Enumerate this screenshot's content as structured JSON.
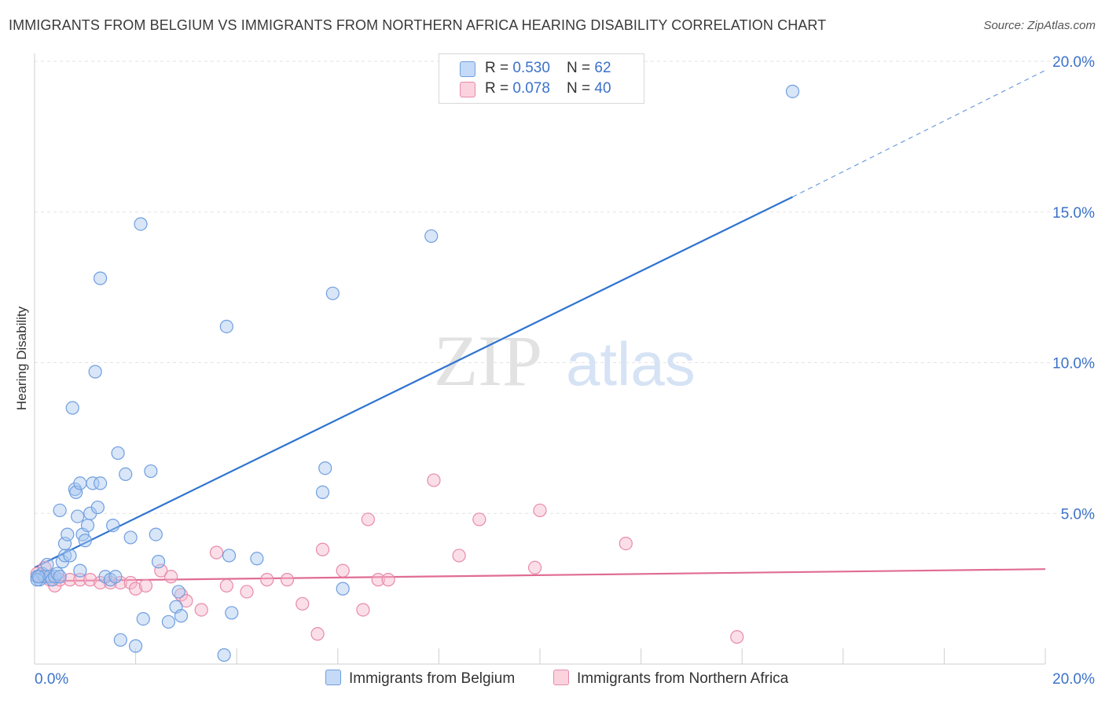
{
  "title": "IMMIGRANTS FROM BELGIUM VS IMMIGRANTS FROM NORTHERN AFRICA HEARING DISABILITY CORRELATION CHART",
  "source": "Source: ZipAtlas.com",
  "watermark": {
    "zip": "ZIP",
    "atlas": "atlas"
  },
  "legend": {
    "rows": [
      {
        "r_label": "R = ",
        "r_value": "0.530",
        "n_label": "N = ",
        "n_value": "62",
        "color": "#a9c8f0"
      },
      {
        "r_label": "R = ",
        "r_value": "0.078",
        "n_label": "N = ",
        "n_value": "40",
        "color": "#f7b9cc"
      }
    ]
  },
  "bottom_legend": [
    "Immigrants from Belgium",
    "Immigrants from Northern Africa"
  ],
  "chart_data": {
    "type": "scatter",
    "title": "IMMIGRANTS FROM BELGIUM VS IMMIGRANTS FROM NORTHERN AFRICA HEARING DISABILITY CORRELATION CHART",
    "xlabel": "",
    "ylabel": "Hearing Disability",
    "xlim": [
      0,
      20
    ],
    "ylim": [
      0,
      20
    ],
    "x_ticks": [
      "0.0%",
      "20.0%"
    ],
    "y_ticks": [
      {
        "value": 5,
        "label": "5.0%"
      },
      {
        "value": 10,
        "label": "10.0%"
      },
      {
        "value": 15,
        "label": "15.0%"
      },
      {
        "value": 20,
        "label": "20.0%"
      }
    ],
    "series": [
      {
        "name": "Immigrants from Belgium",
        "color": "#a9c8f0",
        "stroke": "#6f9ee0",
        "trend": {
          "x0": 0,
          "y0": 3.2,
          "x1": 15,
          "y1": 15.5,
          "dashed_to_x": 20,
          "dashed_to_y": 19.7,
          "color": "#2f74d0"
        },
        "points": [
          [
            0.05,
            2.9
          ],
          [
            0.1,
            2.8
          ],
          [
            0.15,
            3.0
          ],
          [
            0.2,
            2.9
          ],
          [
            0.25,
            3.3
          ],
          [
            0.3,
            2.9
          ],
          [
            0.35,
            2.8
          ],
          [
            0.4,
            2.9
          ],
          [
            0.45,
            3.0
          ],
          [
            0.5,
            2.9
          ],
          [
            0.5,
            5.1
          ],
          [
            0.55,
            3.4
          ],
          [
            0.6,
            3.6
          ],
          [
            0.6,
            4.0
          ],
          [
            0.65,
            4.3
          ],
          [
            0.7,
            3.6
          ],
          [
            0.75,
            8.5
          ],
          [
            0.8,
            5.8
          ],
          [
            0.82,
            5.7
          ],
          [
            0.85,
            4.9
          ],
          [
            0.9,
            3.1
          ],
          [
            0.9,
            6.0
          ],
          [
            0.95,
            4.3
          ],
          [
            1.0,
            4.1
          ],
          [
            1.05,
            4.6
          ],
          [
            1.1,
            5.0
          ],
          [
            1.15,
            6.0
          ],
          [
            1.2,
            9.7
          ],
          [
            1.25,
            5.2
          ],
          [
            1.3,
            6.0
          ],
          [
            1.3,
            12.8
          ],
          [
            1.4,
            2.9
          ],
          [
            1.5,
            2.8
          ],
          [
            1.55,
            4.6
          ],
          [
            1.6,
            2.9
          ],
          [
            1.65,
            7.0
          ],
          [
            1.7,
            0.8
          ],
          [
            1.8,
            6.3
          ],
          [
            1.9,
            4.2
          ],
          [
            2.0,
            0.6
          ],
          [
            2.1,
            14.6
          ],
          [
            2.15,
            1.5
          ],
          [
            2.3,
            6.4
          ],
          [
            2.4,
            4.3
          ],
          [
            2.45,
            3.4
          ],
          [
            2.65,
            1.4
          ],
          [
            2.8,
            1.9
          ],
          [
            2.85,
            2.4
          ],
          [
            2.9,
            1.6
          ],
          [
            3.75,
            0.3
          ],
          [
            3.8,
            11.2
          ],
          [
            3.85,
            3.6
          ],
          [
            3.9,
            1.7
          ],
          [
            4.4,
            3.5
          ],
          [
            5.7,
            5.7
          ],
          [
            5.75,
            6.5
          ],
          [
            5.9,
            12.3
          ],
          [
            6.1,
            2.5
          ],
          [
            7.85,
            14.2
          ],
          [
            15.0,
            19.0
          ],
          [
            0.05,
            2.8
          ],
          [
            0.08,
            2.9
          ]
        ]
      },
      {
        "name": "Immigrants from Northern Africa",
        "color": "#f7b9cc",
        "stroke": "#e88aa8",
        "trend": {
          "x0": 0,
          "y0": 2.75,
          "x1": 20,
          "y1": 3.15,
          "color": "#e06c95"
        },
        "points": [
          [
            0.05,
            3.0
          ],
          [
            0.1,
            2.9
          ],
          [
            0.2,
            3.2
          ],
          [
            0.3,
            2.8
          ],
          [
            0.4,
            2.6
          ],
          [
            0.5,
            2.8
          ],
          [
            0.7,
            2.8
          ],
          [
            0.9,
            2.8
          ],
          [
            1.1,
            2.8
          ],
          [
            1.3,
            2.7
          ],
          [
            1.5,
            2.7
          ],
          [
            1.7,
            2.7
          ],
          [
            1.9,
            2.7
          ],
          [
            2.0,
            2.5
          ],
          [
            2.2,
            2.6
          ],
          [
            2.5,
            3.1
          ],
          [
            2.7,
            2.9
          ],
          [
            2.9,
            2.3
          ],
          [
            3.0,
            2.1
          ],
          [
            3.3,
            1.8
          ],
          [
            3.6,
            3.7
          ],
          [
            3.8,
            2.6
          ],
          [
            4.2,
            2.4
          ],
          [
            4.6,
            2.8
          ],
          [
            5.0,
            2.8
          ],
          [
            5.3,
            2.0
          ],
          [
            5.6,
            1.0
          ],
          [
            5.7,
            3.8
          ],
          [
            6.1,
            3.1
          ],
          [
            6.5,
            1.8
          ],
          [
            6.6,
            4.8
          ],
          [
            6.8,
            2.8
          ],
          [
            7.0,
            2.8
          ],
          [
            7.9,
            6.1
          ],
          [
            8.4,
            3.6
          ],
          [
            8.8,
            4.8
          ],
          [
            9.9,
            3.2
          ],
          [
            10.0,
            5.1
          ],
          [
            11.7,
            4.0
          ],
          [
            13.9,
            0.9
          ]
        ]
      }
    ]
  }
}
